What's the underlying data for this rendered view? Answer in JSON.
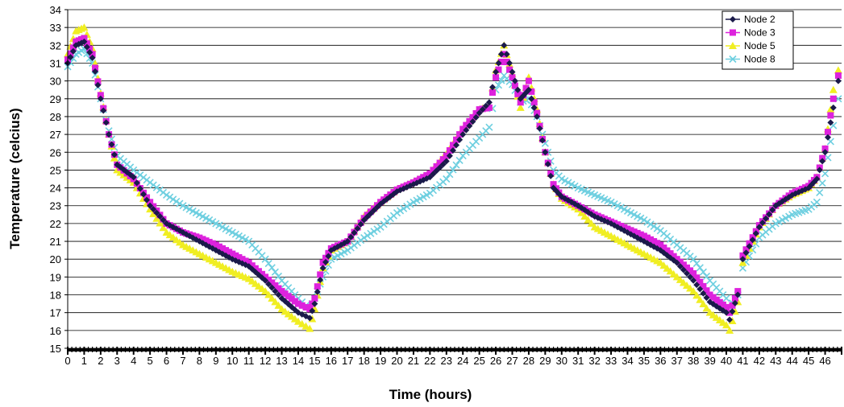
{
  "chart_data": {
    "type": "scatter",
    "title": "",
    "xlabel": "Time (hours)",
    "ylabel": "Temperature (celcius)",
    "xlim": [
      0,
      47
    ],
    "ylim": [
      15,
      34
    ],
    "x_ticks": [
      "0",
      "1",
      "2",
      "3",
      "4",
      "5",
      "6",
      "7",
      "8",
      "9",
      "10",
      "11",
      "12",
      "13",
      "14",
      "15",
      "16",
      "17",
      "18",
      "19",
      "20",
      "21",
      "22",
      "23",
      "24",
      "25",
      "26",
      "27",
      "28",
      "29",
      "30",
      "31",
      "32",
      "33",
      "34",
      "35",
      "36",
      "37",
      "38",
      "39",
      "40",
      "41",
      "42",
      "43",
      "44",
      "45",
      "46"
    ],
    "y_ticks": [
      "15",
      "16",
      "17",
      "18",
      "19",
      "20",
      "21",
      "22",
      "23",
      "24",
      "25",
      "26",
      "27",
      "28",
      "29",
      "30",
      "31",
      "32",
      "33",
      "34"
    ],
    "grid": "horizontal",
    "legend_position": "top-right",
    "series": [
      {
        "name": "Node 2",
        "color": "#1a1a4a",
        "marker": "diamond",
        "points": [
          [
            0,
            31
          ],
          [
            0.5,
            32
          ],
          [
            1,
            32.2
          ],
          [
            1.5,
            31.3
          ],
          [
            2,
            29
          ],
          [
            2.5,
            27
          ],
          [
            3,
            25.3
          ],
          [
            4,
            24.6
          ],
          [
            5,
            23
          ],
          [
            6,
            22
          ],
          [
            7,
            21.5
          ],
          [
            8,
            21
          ],
          [
            9,
            20.5
          ],
          [
            10,
            20
          ],
          [
            11,
            19.6
          ],
          [
            12,
            18.8
          ],
          [
            13,
            17.8
          ],
          [
            14,
            17
          ],
          [
            14.7,
            16.7
          ],
          [
            15,
            17.5
          ],
          [
            15.5,
            19.5
          ],
          [
            16,
            20.5
          ],
          [
            17,
            21
          ],
          [
            18,
            22.2
          ],
          [
            19,
            23.1
          ],
          [
            20,
            23.8
          ],
          [
            21,
            24.2
          ],
          [
            22,
            24.6
          ],
          [
            23,
            25.5
          ],
          [
            24,
            27
          ],
          [
            25,
            28.2
          ],
          [
            25.6,
            28.8
          ],
          [
            26,
            30.5
          ],
          [
            26.5,
            32
          ],
          [
            27,
            30.5
          ],
          [
            27.5,
            29
          ],
          [
            28,
            29.5
          ],
          [
            28.5,
            28
          ],
          [
            29,
            26
          ],
          [
            29.5,
            24
          ],
          [
            30,
            23.5
          ],
          [
            31,
            23
          ],
          [
            32,
            22.4
          ],
          [
            33,
            22
          ],
          [
            34,
            21.5
          ],
          [
            35,
            21
          ],
          [
            36,
            20.5
          ],
          [
            37,
            19.8
          ],
          [
            38,
            18.8
          ],
          [
            39,
            17.6
          ],
          [
            40,
            17
          ],
          [
            40.2,
            16.6
          ],
          [
            40.7,
            18
          ],
          [
            41,
            20
          ],
          [
            42,
            21.8
          ],
          [
            43,
            23
          ],
          [
            44,
            23.6
          ],
          [
            45,
            24
          ],
          [
            45.5,
            24.5
          ],
          [
            46,
            26
          ],
          [
            46.5,
            28.5
          ],
          [
            46.8,
            30
          ]
        ]
      },
      {
        "name": "Node 3",
        "color": "#dd22dd",
        "marker": "square",
        "points": [
          [
            0,
            31.2
          ],
          [
            0.5,
            32.2
          ],
          [
            1,
            32.4
          ],
          [
            1.5,
            31.5
          ],
          [
            2,
            29.2
          ],
          [
            2.5,
            27
          ],
          [
            3,
            25.3
          ],
          [
            4,
            24.5
          ],
          [
            5,
            23.2
          ],
          [
            6,
            22
          ],
          [
            7,
            21.5
          ],
          [
            8,
            21.2
          ],
          [
            9,
            20.8
          ],
          [
            10,
            20.3
          ],
          [
            11,
            19.8
          ],
          [
            12,
            19
          ],
          [
            13,
            18.2
          ],
          [
            14,
            17.5
          ],
          [
            14.7,
            17.2
          ],
          [
            15,
            17.8
          ],
          [
            15.5,
            19.8
          ],
          [
            16,
            20.6
          ],
          [
            17,
            21
          ],
          [
            18,
            22.3
          ],
          [
            19,
            23.2
          ],
          [
            20,
            23.9
          ],
          [
            21,
            24.3
          ],
          [
            22,
            24.8
          ],
          [
            23,
            25.8
          ],
          [
            24,
            27.3
          ],
          [
            25,
            28.4
          ],
          [
            25.6,
            28.5
          ],
          [
            26,
            30.2
          ],
          [
            26.5,
            31.5
          ],
          [
            27,
            30.2
          ],
          [
            27.5,
            28.8
          ],
          [
            28,
            30
          ],
          [
            28.5,
            28.2
          ],
          [
            29,
            26
          ],
          [
            29.5,
            24.2
          ],
          [
            30,
            23.5
          ],
          [
            31,
            23
          ],
          [
            32,
            22.5
          ],
          [
            33,
            22.1
          ],
          [
            34,
            21.7
          ],
          [
            35,
            21.3
          ],
          [
            36,
            20.8
          ],
          [
            37,
            20
          ],
          [
            38,
            19.2
          ],
          [
            39,
            18
          ],
          [
            40,
            17.3
          ],
          [
            40.2,
            17
          ],
          [
            40.7,
            18.2
          ],
          [
            41,
            20.2
          ],
          [
            42,
            21.9
          ],
          [
            43,
            23
          ],
          [
            44,
            23.7
          ],
          [
            45,
            24.1
          ],
          [
            45.5,
            24.6
          ],
          [
            46,
            26.2
          ],
          [
            46.5,
            29
          ],
          [
            46.8,
            30.3
          ]
        ]
      },
      {
        "name": "Node 5",
        "color": "#f0ee22",
        "marker": "triangle",
        "points": [
          [
            0,
            31.5
          ],
          [
            0.5,
            32.8
          ],
          [
            1,
            33
          ],
          [
            1.5,
            31.8
          ],
          [
            2,
            29.3
          ],
          [
            2.5,
            27
          ],
          [
            3,
            25
          ],
          [
            4,
            24.3
          ],
          [
            5,
            22.8
          ],
          [
            6,
            21.5
          ],
          [
            7,
            20.8
          ],
          [
            8,
            20.3
          ],
          [
            9,
            19.8
          ],
          [
            10,
            19.3
          ],
          [
            11,
            18.9
          ],
          [
            12,
            18.2
          ],
          [
            13,
            17.2
          ],
          [
            14,
            16.5
          ],
          [
            14.7,
            16.1
          ],
          [
            15,
            17.2
          ],
          [
            15.5,
            19.5
          ],
          [
            16,
            20.5
          ],
          [
            17,
            21
          ],
          [
            18,
            22.4
          ],
          [
            19,
            23.2
          ],
          [
            20,
            23.9
          ],
          [
            21,
            24.3
          ],
          [
            22,
            24.8
          ],
          [
            23,
            25.9
          ],
          [
            24,
            27.3
          ],
          [
            25,
            28.4
          ],
          [
            25.6,
            28.6
          ],
          [
            26,
            30.6
          ],
          [
            26.5,
            32
          ],
          [
            27,
            30.4
          ],
          [
            27.5,
            28.5
          ],
          [
            28,
            30.2
          ],
          [
            28.5,
            28.4
          ],
          [
            29,
            26
          ],
          [
            29.5,
            24.2
          ],
          [
            30,
            23.4
          ],
          [
            31,
            22.8
          ],
          [
            32,
            21.8
          ],
          [
            33,
            21.3
          ],
          [
            34,
            20.8
          ],
          [
            35,
            20.3
          ],
          [
            36,
            19.8
          ],
          [
            37,
            19
          ],
          [
            38,
            18.2
          ],
          [
            39,
            17
          ],
          [
            40,
            16.3
          ],
          [
            40.2,
            16
          ],
          [
            40.7,
            17.6
          ],
          [
            41,
            19.8
          ],
          [
            42,
            21.8
          ],
          [
            43,
            23
          ],
          [
            44,
            23.6
          ],
          [
            45,
            24
          ],
          [
            45.5,
            24.6
          ],
          [
            46,
            26.2
          ],
          [
            46.5,
            29.5
          ],
          [
            46.8,
            30.6
          ]
        ]
      },
      {
        "name": "Node 8",
        "color": "#6ecfe0",
        "marker": "x",
        "points": [
          [
            0,
            30.8
          ],
          [
            0.5,
            31.5
          ],
          [
            1,
            31.8
          ],
          [
            1.5,
            31
          ],
          [
            2,
            29
          ],
          [
            2.5,
            27.2
          ],
          [
            3,
            25.8
          ],
          [
            4,
            25
          ],
          [
            5,
            24.3
          ],
          [
            6,
            23.6
          ],
          [
            7,
            23
          ],
          [
            8,
            22.5
          ],
          [
            9,
            22
          ],
          [
            10,
            21.5
          ],
          [
            11,
            21
          ],
          [
            12,
            20
          ],
          [
            13,
            18.8
          ],
          [
            14,
            17.8
          ],
          [
            14.7,
            17.2
          ],
          [
            15,
            17.8
          ],
          [
            15.5,
            19
          ],
          [
            16,
            20
          ],
          [
            17,
            20.5
          ],
          [
            18,
            21.2
          ],
          [
            19,
            21.8
          ],
          [
            20,
            22.6
          ],
          [
            21,
            23.2
          ],
          [
            22,
            23.7
          ],
          [
            23,
            24.5
          ],
          [
            24,
            25.8
          ],
          [
            25,
            26.8
          ],
          [
            25.6,
            27.4
          ],
          [
            26,
            29.5
          ],
          [
            26.5,
            30.3
          ],
          [
            27,
            29.8
          ],
          [
            27.5,
            28.8
          ],
          [
            28,
            29
          ],
          [
            28.5,
            28
          ],
          [
            29,
            26.5
          ],
          [
            29.5,
            25
          ],
          [
            30,
            24.5
          ],
          [
            31,
            24
          ],
          [
            32,
            23.6
          ],
          [
            33,
            23.2
          ],
          [
            34,
            22.7
          ],
          [
            35,
            22.2
          ],
          [
            36,
            21.6
          ],
          [
            37,
            20.8
          ],
          [
            38,
            20
          ],
          [
            39,
            18.8
          ],
          [
            40,
            17.8
          ],
          [
            40.2,
            17.3
          ],
          [
            40.7,
            18
          ],
          [
            41,
            19.5
          ],
          [
            42,
            21.2
          ],
          [
            43,
            22
          ],
          [
            44,
            22.5
          ],
          [
            45,
            22.8
          ],
          [
            45.5,
            23.2
          ],
          [
            46,
            24.8
          ],
          [
            46.5,
            27.5
          ],
          [
            46.8,
            29
          ]
        ]
      }
    ]
  }
}
